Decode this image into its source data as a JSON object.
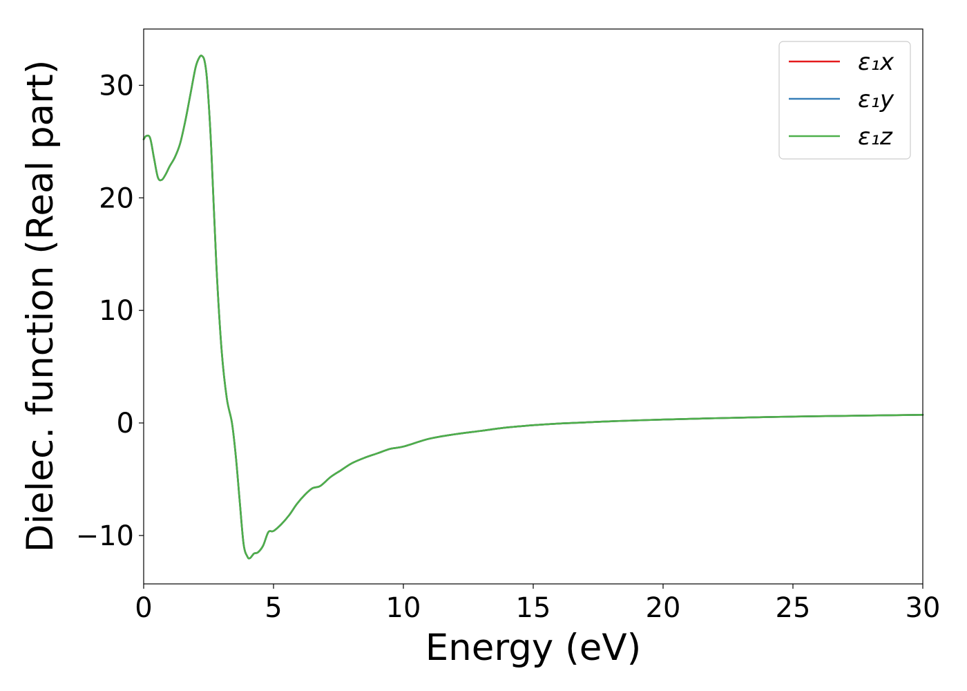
{
  "chart_data": {
    "type": "line",
    "xlabel": "Energy (eV)",
    "ylabel": "Dielec. function (Real part)",
    "xlim": [
      0,
      30
    ],
    "ylim": [
      -14.3,
      35
    ],
    "xticks": [
      0,
      5,
      10,
      15,
      20,
      25,
      30
    ],
    "xtick_labels": [
      "0",
      "5",
      "10",
      "15",
      "20",
      "25",
      "30"
    ],
    "yticks": [
      -10,
      0,
      10,
      20,
      30
    ],
    "ytick_labels": [
      "−10",
      "0",
      "10",
      "20",
      "30"
    ],
    "grid": false,
    "legend_position": "top-right",
    "x": [
      0,
      0.1,
      0.25,
      0.4,
      0.55,
      0.7,
      0.85,
      1.0,
      1.2,
      1.4,
      1.6,
      1.8,
      2.0,
      2.15,
      2.25,
      2.35,
      2.45,
      2.6,
      2.8,
      3.0,
      3.2,
      3.4,
      3.55,
      3.7,
      3.85,
      4.0,
      4.1,
      4.25,
      4.4,
      4.6,
      4.8,
      5.0,
      5.3,
      5.6,
      5.9,
      6.2,
      6.5,
      6.8,
      7.2,
      7.6,
      8.0,
      8.5,
      9.0,
      9.5,
      10.0,
      11.0,
      12.0,
      13.0,
      14.0,
      15.0,
      16.0,
      17.0,
      18.0,
      20.0,
      22.0,
      24.0,
      26.0,
      28.0,
      30.0
    ],
    "series": [
      {
        "name": "ε₁x",
        "color": "#e41a1c",
        "y": [
          25.2,
          25.5,
          25.3,
          23.5,
          21.8,
          21.6,
          22.1,
          22.8,
          23.6,
          24.8,
          26.8,
          29.2,
          31.6,
          32.5,
          32.6,
          32.1,
          30.2,
          24.5,
          14.0,
          6.5,
          2.2,
          0.0,
          -3.0,
          -7.0,
          -10.8,
          -11.9,
          -12.0,
          -11.6,
          -11.5,
          -10.9,
          -9.7,
          -9.6,
          -9.0,
          -8.2,
          -7.2,
          -6.4,
          -5.8,
          -5.6,
          -4.8,
          -4.2,
          -3.6,
          -3.1,
          -2.7,
          -2.3,
          -2.1,
          -1.4,
          -1.0,
          -0.7,
          -0.4,
          -0.2,
          -0.05,
          0.05,
          0.15,
          0.3,
          0.42,
          0.52,
          0.6,
          0.66,
          0.72
        ]
      },
      {
        "name": "ε₁y",
        "color": "#377eb8",
        "y": [
          25.2,
          25.5,
          25.3,
          23.5,
          21.8,
          21.6,
          22.1,
          22.8,
          23.6,
          24.8,
          26.8,
          29.2,
          31.6,
          32.5,
          32.6,
          32.1,
          30.2,
          24.5,
          14.0,
          6.5,
          2.2,
          0.0,
          -3.0,
          -7.0,
          -10.8,
          -11.9,
          -12.0,
          -11.6,
          -11.5,
          -10.9,
          -9.7,
          -9.6,
          -9.0,
          -8.2,
          -7.2,
          -6.4,
          -5.8,
          -5.6,
          -4.8,
          -4.2,
          -3.6,
          -3.1,
          -2.7,
          -2.3,
          -2.1,
          -1.4,
          -1.0,
          -0.7,
          -0.4,
          -0.2,
          -0.05,
          0.05,
          0.15,
          0.3,
          0.42,
          0.52,
          0.6,
          0.66,
          0.72
        ]
      },
      {
        "name": "ε₁z",
        "color": "#4daf4a",
        "y": [
          25.2,
          25.5,
          25.3,
          23.5,
          21.8,
          21.6,
          22.1,
          22.8,
          23.6,
          24.8,
          26.8,
          29.2,
          31.6,
          32.5,
          32.6,
          32.1,
          30.2,
          24.5,
          14.0,
          6.5,
          2.2,
          0.0,
          -3.0,
          -7.0,
          -10.8,
          -11.9,
          -12.0,
          -11.6,
          -11.5,
          -10.9,
          -9.7,
          -9.6,
          -9.0,
          -8.2,
          -7.2,
          -6.4,
          -5.8,
          -5.6,
          -4.8,
          -4.2,
          -3.6,
          -3.1,
          -2.7,
          -2.3,
          -2.1,
          -1.4,
          -1.0,
          -0.7,
          -0.4,
          -0.2,
          -0.05,
          0.05,
          0.15,
          0.3,
          0.42,
          0.52,
          0.6,
          0.66,
          0.72
        ]
      }
    ]
  }
}
